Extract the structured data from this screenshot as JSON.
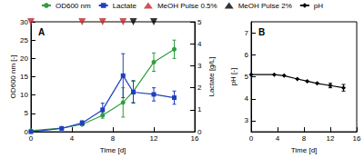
{
  "chart_data": [
    {
      "type": "line",
      "title": "A",
      "legend": "top",
      "grid": false,
      "x_label": "Time [d]",
      "y_label": "OD600 nm [-]",
      "y2_label": "Lactate [g/L]",
      "xlim": [
        0,
        16
      ],
      "xticks": [
        0,
        4,
        8,
        12,
        16
      ],
      "ylim": [
        0,
        30
      ],
      "yticks": [
        0,
        5,
        10,
        15,
        20,
        25,
        30
      ],
      "y2lim": [
        0,
        5
      ],
      "y2ticks": [
        0,
        1,
        2,
        3,
        4,
        5
      ],
      "series": [
        {
          "name": "OD600 nm",
          "color": "#2e9e3e",
          "marker": "circle",
          "line_style": "solid",
          "x": [
            0,
            3,
            5,
            7,
            9,
            10,
            12,
            14
          ],
          "values": [
            0.3,
            1.0,
            2.0,
            4.5,
            8.0,
            11.0,
            19.0,
            22.5
          ],
          "errors": [
            null,
            null,
            0.3,
            0.8,
            4.0,
            3.0,
            2.5,
            2.5
          ]
        },
        {
          "name": "Lactate",
          "axis": "y2",
          "color": "#1f3fbf",
          "marker": "square",
          "line_style": "solid",
          "x": [
            0,
            3,
            5,
            7,
            9,
            10,
            12,
            14
          ],
          "values": [
            0.0,
            0.15,
            0.4,
            1.0,
            2.55,
            1.8,
            1.7,
            1.55
          ],
          "errors": [
            null,
            null,
            0.1,
            0.3,
            1.0,
            0.5,
            0.3,
            0.3
          ]
        },
        {
          "name": "MeOH Pulse 0.5%",
          "type": "scatter",
          "color": "#c0282d",
          "marker": "triangle-down",
          "x": [
            0,
            5,
            7,
            9
          ],
          "values": [
            30,
            30,
            30,
            30
          ]
        },
        {
          "name": "MeOH Pulse 2%",
          "type": "scatter",
          "color": "#000000",
          "marker": "triangle-down",
          "x": [
            10,
            12
          ],
          "values": [
            30,
            30
          ]
        }
      ]
    },
    {
      "type": "line",
      "title": "B",
      "legend": "top",
      "grid": false,
      "x_label": "Time [d]",
      "y_label": "pH [-]",
      "xlim": [
        0,
        16
      ],
      "xticks": [
        0,
        4,
        8,
        12,
        16
      ],
      "ylim": [
        2.5,
        7.5
      ],
      "yticks": [
        3,
        4,
        5,
        6,
        7
      ],
      "series": [
        {
          "name": "pH",
          "color": "#000000",
          "marker": "diamond",
          "line_style": "solid",
          "x": [
            0,
            3.5,
            5,
            7,
            8.5,
            10,
            12,
            14
          ],
          "values": [
            5.1,
            5.1,
            5.05,
            4.9,
            4.8,
            4.7,
            4.6,
            4.5
          ],
          "errors": [
            null,
            null,
            null,
            null,
            null,
            null,
            0.1,
            0.15
          ]
        }
      ]
    }
  ]
}
